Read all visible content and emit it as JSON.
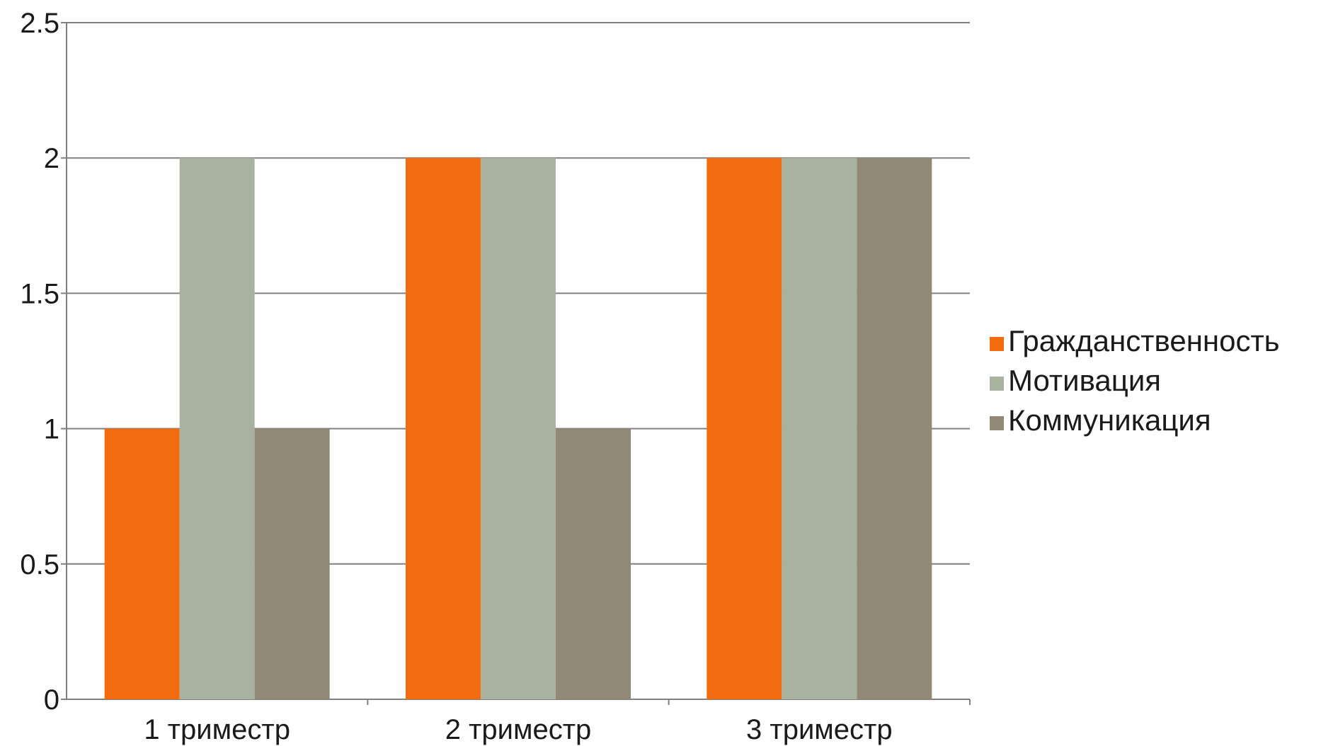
{
  "chart_data": {
    "type": "bar",
    "title": "",
    "xlabel": "",
    "ylabel": "",
    "categories": [
      "1 триместр",
      "2 триместр",
      "3 триместр"
    ],
    "series": [
      {
        "name": "Гражданственность",
        "values": [
          1,
          2,
          2
        ],
        "color": "#f26b0f"
      },
      {
        "name": "Мотивация",
        "values": [
          2,
          2,
          2
        ],
        "color": "#a9b2a0"
      },
      {
        "name": "Коммуникация",
        "values": [
          1,
          1,
          2
        ],
        "color": "#918875"
      }
    ],
    "ylim": [
      0,
      2.5
    ],
    "yticks": [
      0,
      0.5,
      1,
      1.5,
      2,
      2.5
    ],
    "ytick_labels": [
      "0",
      "0.5",
      "1",
      "1.5",
      "2",
      "2.5"
    ],
    "grid": true,
    "legend_position": "right",
    "colors": {
      "grid": "#808080",
      "axis": "#808080",
      "text": "#1a1a1a"
    }
  }
}
